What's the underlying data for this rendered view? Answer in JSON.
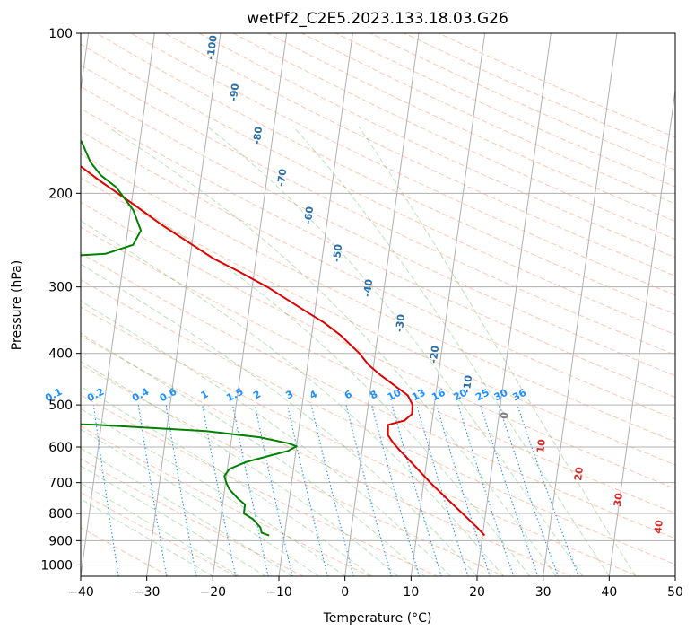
{
  "chart_data": {
    "type": "line",
    "title": "wetPf2_C2E5.2023.133.18.03.G26",
    "xlabel": "Temperature (°C)",
    "ylabel": "Pressure (hPa)",
    "xlim": [
      -40,
      50
    ],
    "ylim": [
      1050,
      100
    ],
    "y_scale": "log",
    "grid": true,
    "x_ticks": [
      -40,
      -30,
      -20,
      -10,
      0,
      10,
      20,
      30,
      40,
      50
    ],
    "y_ticks": [
      100,
      200,
      300,
      400,
      500,
      600,
      700,
      800,
      900,
      1000
    ],
    "skew": 35,
    "isotherm_labels": [
      -100,
      -90,
      -80,
      -70,
      -60,
      -50,
      -40,
      -30,
      -20,
      -10,
      0,
      10,
      20,
      30,
      40
    ],
    "mixing_ratio_labels": [
      "0.1",
      "0.2",
      "0.4",
      "0.6",
      "1",
      "1.5",
      "2",
      "3",
      "4",
      "6",
      "8",
      "10",
      "13",
      "16",
      "20",
      "25",
      "30",
      "36"
    ],
    "mixing_ratio_values": [
      0.1,
      0.2,
      0.4,
      0.6,
      1,
      1.5,
      2,
      3,
      4,
      6,
      8,
      10,
      13,
      16,
      20,
      25,
      30,
      36
    ],
    "colors": {
      "temperature": "#e00000",
      "dewpoint": "#008000",
      "isotherm_cold": "#2a6fa8",
      "isotherm_warm": "#d03030",
      "isotherm_zero": "#808080",
      "mixing_ratio": "#1e90ff",
      "dry_adiabat": "#ff7f50",
      "moist_adiabat": "#2ca02c",
      "grid": "#b0b0b0"
    },
    "series": [
      {
        "key": "temperature",
        "points": [
          {
            "p": 880,
            "t": 20.3
          },
          {
            "p": 850,
            "t": 19.0
          },
          {
            "p": 800,
            "t": 16.5
          },
          {
            "p": 750,
            "t": 13.8
          },
          {
            "p": 700,
            "t": 11.0
          },
          {
            "p": 650,
            "t": 8.2
          },
          {
            "p": 610,
            "t": 5.8
          },
          {
            "p": 590,
            "t": 4.6
          },
          {
            "p": 570,
            "t": 3.6
          },
          {
            "p": 545,
            "t": 3.4
          },
          {
            "p": 535,
            "t": 5.8
          },
          {
            "p": 520,
            "t": 6.8
          },
          {
            "p": 500,
            "t": 6.7
          },
          {
            "p": 480,
            "t": 5.8
          },
          {
            "p": 460,
            "t": 3.6
          },
          {
            "p": 440,
            "t": 1.3
          },
          {
            "p": 420,
            "t": -0.8
          },
          {
            "p": 400,
            "t": -2.4
          },
          {
            "p": 370,
            "t": -5.6
          },
          {
            "p": 350,
            "t": -8.4
          },
          {
            "p": 330,
            "t": -12.0
          },
          {
            "p": 300,
            "t": -17.7
          },
          {
            "p": 280,
            "t": -22.5
          },
          {
            "p": 265,
            "t": -26.5
          },
          {
            "p": 250,
            "t": -29.9
          },
          {
            "p": 230,
            "t": -34.8
          },
          {
            "p": 210,
            "t": -39.6
          },
          {
            "p": 190,
            "t": -45.1
          },
          {
            "p": 175,
            "t": -49.3
          },
          {
            "p": 160,
            "t": -53.1
          },
          {
            "p": 150,
            "t": -54.4
          },
          {
            "p": 140,
            "t": -56.1
          },
          {
            "p": 130,
            "t": -59.4
          },
          {
            "p": 120,
            "t": -64.7
          },
          {
            "p": 110,
            "t": -68.7
          },
          {
            "p": 105,
            "t": -70.0
          },
          {
            "p": 100,
            "t": -71.8
          }
        ]
      },
      {
        "key": "dewpoint",
        "points": [
          {
            "p": 880,
            "t": -12.3
          },
          {
            "p": 870,
            "t": -13.5
          },
          {
            "p": 850,
            "t": -13.8
          },
          {
            "p": 820,
            "t": -15.1
          },
          {
            "p": 800,
            "t": -16.6
          },
          {
            "p": 770,
            "t": -16.6
          },
          {
            "p": 750,
            "t": -17.8
          },
          {
            "p": 720,
            "t": -19.3
          },
          {
            "p": 700,
            "t": -19.9
          },
          {
            "p": 680,
            "t": -20.3
          },
          {
            "p": 660,
            "t": -19.7
          },
          {
            "p": 640,
            "t": -17.3
          },
          {
            "p": 625,
            "t": -14.3
          },
          {
            "p": 610,
            "t": -11.2
          },
          {
            "p": 598,
            "t": -10.0
          },
          {
            "p": 590,
            "t": -11.4
          },
          {
            "p": 575,
            "t": -15.8
          },
          {
            "p": 560,
            "t": -24.0
          },
          {
            "p": 545,
            "t": -40.7
          },
          {
            "p": 535,
            "t": -60.0
          },
          {
            "p": 520,
            "t": -70.6
          },
          {
            "p": 500,
            "t": -77.2
          },
          {
            "p": 485,
            "t": -79.4
          },
          {
            "p": 470,
            "t": -79.7
          },
          {
            "p": 455,
            "t": -75.0
          },
          {
            "p": 440,
            "t": -68.8
          },
          {
            "p": 420,
            "t": -62.0
          },
          {
            "p": 400,
            "t": -59.1
          },
          {
            "p": 370,
            "t": -57.8
          },
          {
            "p": 340,
            "t": -58.0
          },
          {
            "p": 310,
            "t": -58.4
          },
          {
            "p": 285,
            "t": -60.3
          },
          {
            "p": 268,
            "t": -62.4
          },
          {
            "p": 265,
            "t": -54.3
          },
          {
            "p": 260,
            "t": -42.9
          },
          {
            "p": 250,
            "t": -38.9
          },
          {
            "p": 235,
            "t": -38.0
          },
          {
            "p": 215,
            "t": -39.6
          },
          {
            "p": 195,
            "t": -42.6
          },
          {
            "p": 185,
            "t": -45.2
          },
          {
            "p": 175,
            "t": -47.0
          },
          {
            "p": 160,
            "t": -48.8
          },
          {
            "p": 150,
            "t": -52.5
          },
          {
            "p": 140,
            "t": -57.0
          },
          {
            "p": 132,
            "t": -60.3
          },
          {
            "p": 125,
            "t": -62.6
          },
          {
            "p": 115,
            "t": -65.5
          },
          {
            "p": 105,
            "t": -69.0
          },
          {
            "p": 100,
            "t": -71.0
          }
        ]
      }
    ]
  }
}
